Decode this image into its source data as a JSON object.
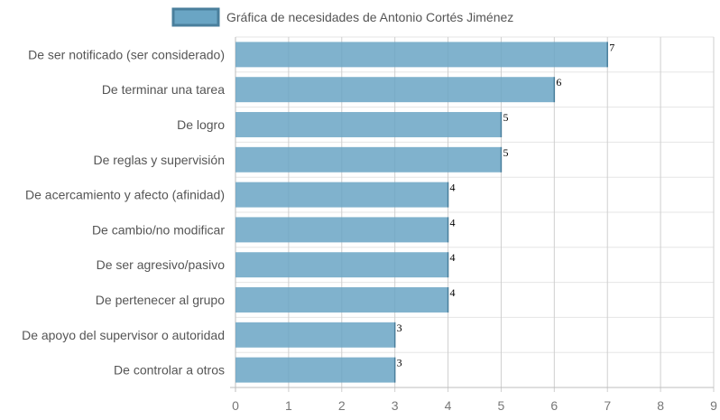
{
  "chart_data": {
    "type": "bar",
    "orientation": "horizontal",
    "categories": [
      "De ser notificado (ser considerado)",
      "De terminar una tarea",
      "De logro",
      "De reglas y supervisión",
      "De acercamiento y afecto (afinidad)",
      "De cambio/no modificar",
      "De ser agresivo/pasivo",
      "De pertenecer al grupo",
      "De apoyo del supervisor o autoridad",
      "De controlar a otros"
    ],
    "series": [
      {
        "name": "Gráfica de necesidades de Antonio Cortés Jiménez",
        "values": [
          7,
          6,
          5,
          5,
          4,
          4,
          4,
          4,
          3,
          3
        ],
        "color": "#6aa5c4",
        "border_color": "#4a7f9c"
      }
    ],
    "xlim": [
      0,
      9
    ],
    "x_ticks": [
      0,
      1,
      2,
      3,
      4,
      5,
      6,
      7,
      8,
      9
    ],
    "grid": true,
    "legend_position": "top",
    "title": "",
    "xlabel": "",
    "ylabel": ""
  }
}
